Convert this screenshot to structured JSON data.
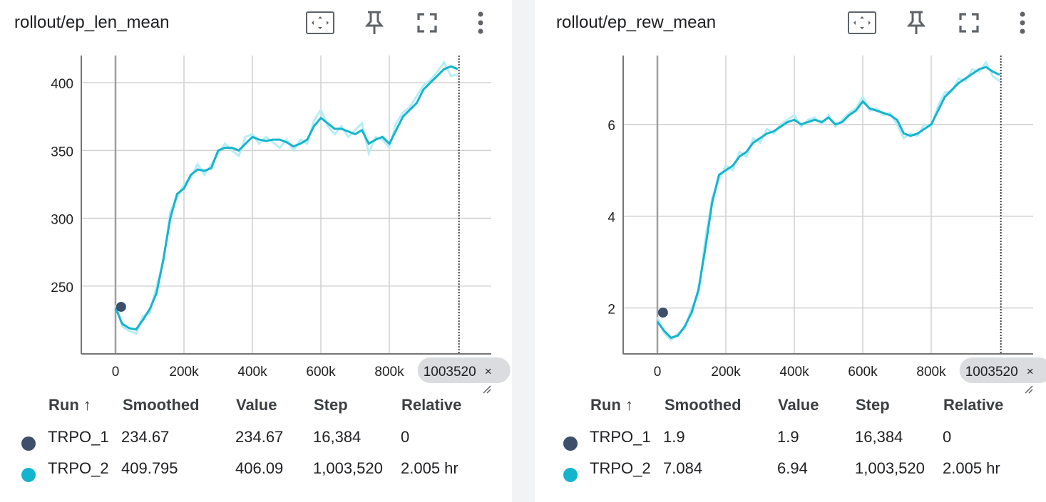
{
  "colors": {
    "run1": "#3d4f6a",
    "run2": "#15b4cd",
    "run2_raw": "#b7edf5",
    "grid": "#d0d0d0",
    "cursor_chip": "#dadce0"
  },
  "icons": [
    "fit-domain-icon",
    "pin-icon",
    "fullscreen-icon",
    "more-vert-icon",
    "close-icon",
    "resize-handle-icon"
  ],
  "legend_headers": {
    "run": "Run ↑",
    "smoothed": "Smoothed",
    "value": "Value",
    "step": "Step",
    "relative": "Relative"
  },
  "cards": [
    {
      "title": "rollout/ep_len_mean",
      "cursor_label": "1003520",
      "rows": [
        {
          "run": "TRPO_1",
          "smoothed": "234.67",
          "value": "234.67",
          "step": "16,384",
          "relative": "0"
        },
        {
          "run": "TRPO_2",
          "smoothed": "409.795",
          "value": "406.09",
          "step": "1,003,520",
          "relative": "2.005 hr"
        }
      ]
    },
    {
      "title": "rollout/ep_rew_mean",
      "cursor_label": "1003520",
      "rows": [
        {
          "run": "TRPO_1",
          "smoothed": "1.9",
          "value": "1.9",
          "step": "16,384",
          "relative": "0"
        },
        {
          "run": "TRPO_2",
          "smoothed": "7.084",
          "value": "6.94",
          "step": "1,003,520",
          "relative": "2.005 hr"
        }
      ]
    }
  ],
  "chart_data": [
    {
      "type": "line",
      "title": "rollout/ep_len_mean",
      "xlim": [
        -100000,
        1100000
      ],
      "ylim": [
        200,
        420
      ],
      "x_ticks": [
        0,
        200000,
        400000,
        600000,
        800000
      ],
      "x_tick_labels": [
        "0",
        "200k",
        "400k",
        "600k",
        "800k"
      ],
      "y_ticks": [
        250,
        300,
        350,
        400
      ],
      "y_tick_labels": [
        "250",
        "300",
        "350",
        "400"
      ],
      "grid": true,
      "cursor_x": 1003520,
      "series": [
        {
          "name": "TRPO_1",
          "points": [
            [
              16384,
              234.67
            ]
          ]
        },
        {
          "name": "TRPO_2",
          "x": [
            0,
            20000,
            40000,
            60000,
            80000,
            100000,
            120000,
            140000,
            160000,
            180000,
            200000,
            220000,
            240000,
            260000,
            280000,
            300000,
            320000,
            340000,
            360000,
            380000,
            400000,
            420000,
            440000,
            460000,
            480000,
            500000,
            520000,
            540000,
            560000,
            580000,
            600000,
            620000,
            640000,
            660000,
            680000,
            700000,
            720000,
            740000,
            760000,
            780000,
            800000,
            820000,
            840000,
            860000,
            880000,
            900000,
            920000,
            940000,
            960000,
            980000,
            1000000
          ],
          "smoothed": [
            234,
            222,
            219,
            218,
            225,
            233,
            245,
            270,
            300,
            318,
            322,
            332,
            336,
            335,
            337,
            350,
            352,
            352,
            350,
            355,
            360,
            358,
            357,
            358,
            358,
            356,
            353,
            355,
            358,
            368,
            374,
            370,
            366,
            366,
            364,
            362,
            365,
            355,
            358,
            360,
            355,
            365,
            375,
            380,
            385,
            395,
            400,
            405,
            410,
            412,
            410
          ],
          "values": [
            236,
            220,
            217,
            215,
            228,
            230,
            250,
            268,
            305,
            315,
            325,
            330,
            340,
            332,
            340,
            348,
            355,
            350,
            346,
            360,
            362,
            355,
            360,
            356,
            352,
            358,
            350,
            358,
            355,
            372,
            380,
            368,
            362,
            368,
            360,
            365,
            370,
            348,
            360,
            358,
            352,
            370,
            378,
            382,
            390,
            398,
            402,
            408,
            415,
            405,
            406
          ]
        }
      ]
    },
    {
      "type": "line",
      "title": "rollout/ep_rew_mean",
      "xlim": [
        -100000,
        1100000
      ],
      "ylim": [
        1,
        7.5
      ],
      "x_ticks": [
        0,
        200000,
        400000,
        600000,
        800000
      ],
      "x_tick_labels": [
        "0",
        "200k",
        "400k",
        "600k",
        "800k"
      ],
      "y_ticks": [
        2,
        4,
        6
      ],
      "y_tick_labels": [
        "2",
        "4",
        "6"
      ],
      "grid": true,
      "cursor_x": 1003520,
      "series": [
        {
          "name": "TRPO_1",
          "points": [
            [
              16384,
              1.9
            ]
          ]
        },
        {
          "name": "TRPO_2",
          "x": [
            0,
            20000,
            40000,
            60000,
            80000,
            100000,
            120000,
            140000,
            160000,
            180000,
            200000,
            220000,
            240000,
            260000,
            280000,
            300000,
            320000,
            340000,
            360000,
            380000,
            400000,
            420000,
            440000,
            460000,
            480000,
            500000,
            520000,
            540000,
            560000,
            580000,
            600000,
            620000,
            640000,
            660000,
            680000,
            700000,
            720000,
            740000,
            760000,
            780000,
            800000,
            820000,
            840000,
            860000,
            880000,
            900000,
            920000,
            940000,
            960000,
            980000,
            1000000
          ],
          "smoothed": [
            1.7,
            1.5,
            1.35,
            1.4,
            1.6,
            1.9,
            2.4,
            3.3,
            4.3,
            4.9,
            5.0,
            5.1,
            5.3,
            5.4,
            5.6,
            5.7,
            5.8,
            5.85,
            5.95,
            6.05,
            6.1,
            6.0,
            6.05,
            6.1,
            6.05,
            6.15,
            6.0,
            6.05,
            6.2,
            6.3,
            6.5,
            6.35,
            6.3,
            6.25,
            6.2,
            6.1,
            5.8,
            5.75,
            5.8,
            5.9,
            6.0,
            6.3,
            6.6,
            6.75,
            6.9,
            7.0,
            7.1,
            7.2,
            7.25,
            7.15,
            7.08
          ],
          "values": [
            1.8,
            1.45,
            1.3,
            1.45,
            1.55,
            2.0,
            2.3,
            3.5,
            4.4,
            4.8,
            5.1,
            5.0,
            5.4,
            5.3,
            5.7,
            5.6,
            5.9,
            5.8,
            6.0,
            6.1,
            6.2,
            5.95,
            6.1,
            6.15,
            6.0,
            6.2,
            5.95,
            6.1,
            6.25,
            6.35,
            6.6,
            6.3,
            6.35,
            6.2,
            6.25,
            6.0,
            5.7,
            5.8,
            5.75,
            6.0,
            5.95,
            6.4,
            6.7,
            6.7,
            7.0,
            6.95,
            7.2,
            7.15,
            7.35,
            7.05,
            6.94
          ]
        }
      ]
    }
  ]
}
